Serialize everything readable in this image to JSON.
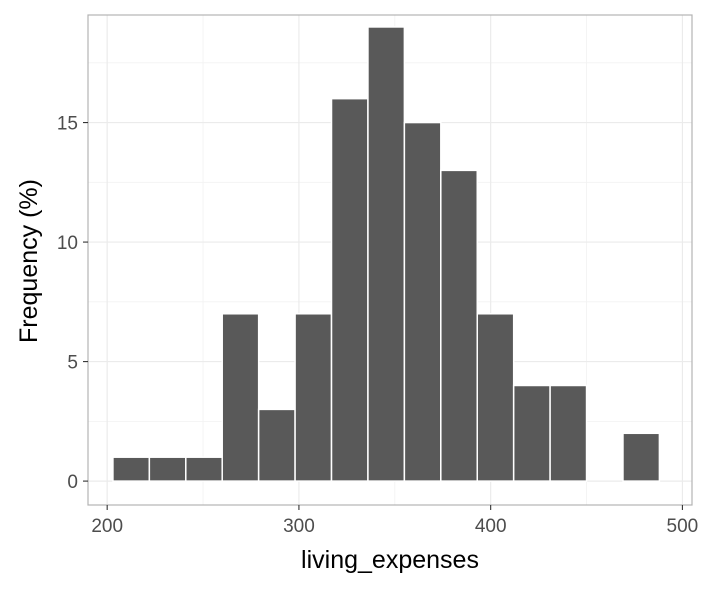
{
  "chart_data": {
    "type": "bar",
    "xlabel": "living_expenses",
    "ylabel": "Frequency (%)",
    "x_ticks": [
      200,
      300,
      400,
      500
    ],
    "y_ticks": [
      0,
      5,
      10,
      15
    ],
    "xlim": [
      190,
      505
    ],
    "ylim": [
      -1,
      19.5
    ],
    "bin_width": 19,
    "bins": [
      {
        "x": 212.5,
        "value": 1
      },
      {
        "x": 231.5,
        "value": 1
      },
      {
        "x": 250.5,
        "value": 1
      },
      {
        "x": 269.5,
        "value": 7
      },
      {
        "x": 288.5,
        "value": 3
      },
      {
        "x": 307.5,
        "value": 7
      },
      {
        "x": 326.5,
        "value": 16
      },
      {
        "x": 345.5,
        "value": 19
      },
      {
        "x": 364.5,
        "value": 15
      },
      {
        "x": 383.5,
        "value": 13
      },
      {
        "x": 402.5,
        "value": 7
      },
      {
        "x": 421.5,
        "value": 4
      },
      {
        "x": 440.5,
        "value": 4
      },
      {
        "x": 459.5,
        "value": 0
      },
      {
        "x": 478.5,
        "value": 2
      }
    ],
    "grid": true,
    "legend": "none",
    "colors": {
      "bar": "#595959",
      "bar_edge": "#ffffff",
      "grid_major": "#ebebeb",
      "grid_minor": "#f2f2f2",
      "panel_border": "#b3b3b3"
    }
  }
}
